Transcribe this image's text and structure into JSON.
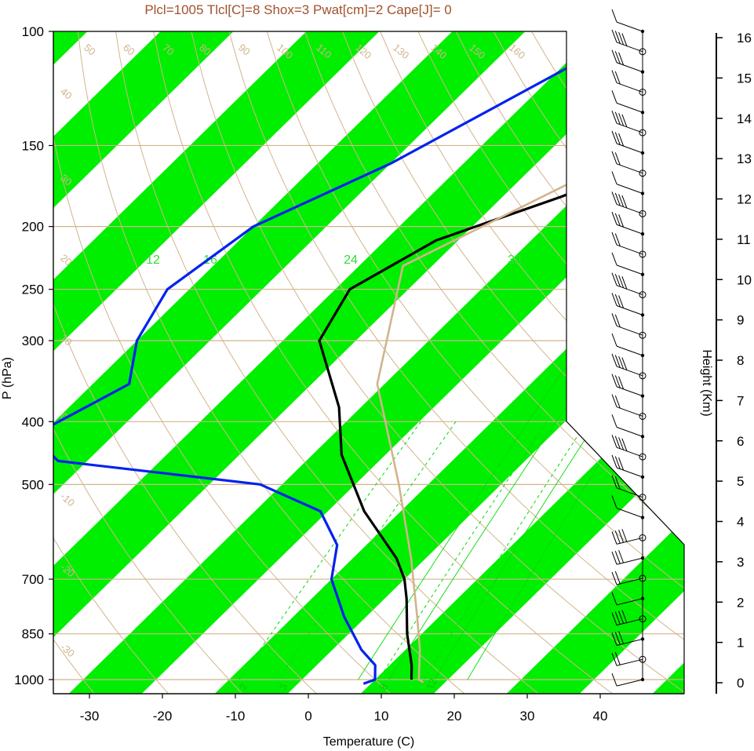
{
  "title": "Plcl=1005 Tlcl[C]=8 Shox=3 Pwat[cm]=2 Cape[J]= 0",
  "colors": {
    "band": "#00ee00",
    "tan": "#d2b48c",
    "temperature": "#000000",
    "dewpoint": "#0022ee",
    "parcel": "#d2b48c",
    "mixing": "#00dd00",
    "title": "#a0522d"
  },
  "chart_data": {
    "type": "line",
    "diagram": "skew-T log-P",
    "xlabel": "Temperature (C)",
    "ylabel": "P (hPa)",
    "height_label": "Height (Km)",
    "pressure_levels": [
      100,
      150,
      200,
      250,
      300,
      400,
      500,
      700,
      850,
      1000
    ],
    "pressure_ticks": [
      "100",
      "150",
      "200",
      "250",
      "300",
      "400",
      "500",
      "700",
      "850",
      "1000"
    ],
    "temp_ticks": [
      "-30",
      "-20",
      "-10",
      "0",
      "10",
      "20",
      "30",
      "40"
    ],
    "temp_values": [
      -30,
      -20,
      -10,
      0,
      10,
      20,
      30,
      40
    ],
    "height_ticks": [
      "0",
      "1",
      "2",
      "3",
      "4",
      "5",
      "6",
      "7",
      "8",
      "9",
      "10",
      "11",
      "12",
      "13",
      "14",
      "15",
      "16"
    ],
    "isotherm_labels": [
      "-30",
      "-20",
      "-10",
      "0",
      "10",
      "20",
      "30",
      "40",
      "-10",
      "0",
      "10",
      "20",
      "30",
      "40",
      "50",
      "60"
    ],
    "theta_labels": [
      "50",
      "60",
      "70",
      "80",
      "90",
      "100",
      "110",
      "120",
      "130",
      "140",
      "150",
      "160",
      "40",
      "30",
      "20",
      "10",
      "0",
      "-10",
      "-20",
      "-30"
    ],
    "mixing_ratio_labels_top": [
      "12",
      "16",
      "24",
      "32"
    ],
    "mixing_ratio_labels_bottom": [
      "2",
      "3",
      "8",
      "12"
    ],
    "series": [
      {
        "name": "Temperature",
        "units": "C / hPa",
        "points": [
          [
            -2.0,
            100
          ],
          [
            -11.0,
            120
          ],
          [
            -21.0,
            150
          ],
          [
            -32.0,
            180
          ],
          [
            -43.0,
            210
          ],
          [
            -48.0,
            250
          ],
          [
            -45.0,
            300
          ],
          [
            -33.0,
            380
          ],
          [
            -26.0,
            450
          ],
          [
            -15.0,
            550
          ],
          [
            -4.0,
            650
          ],
          [
            0.0,
            700
          ],
          [
            3.0,
            750
          ],
          [
            8.0,
            850
          ],
          [
            13.0,
            950
          ],
          [
            15.0,
            1000
          ]
        ]
      },
      {
        "name": "Dewpoint",
        "units": "C / hPa",
        "points": [
          [
            -45.0,
            100
          ],
          [
            -60.0,
            160
          ],
          [
            -70.0,
            200
          ],
          [
            -73.0,
            250
          ],
          [
            -70.0,
            300
          ],
          [
            -65.0,
            350
          ],
          [
            -71.0,
            420
          ],
          [
            -64.0,
            460
          ],
          [
            -33.0,
            500
          ],
          [
            -21.0,
            550
          ],
          [
            -14.0,
            620
          ],
          [
            -10.0,
            700
          ],
          [
            -3.0,
            800
          ],
          [
            4.0,
            900
          ],
          [
            8.0,
            950
          ],
          [
            10.0,
            1000
          ],
          [
            9.0,
            1015
          ]
        ]
      },
      {
        "name": "Parcel",
        "units": "C / hPa",
        "points": [
          [
            -12.0,
            100
          ],
          [
            -44.0,
            230
          ],
          [
            -31.0,
            350
          ],
          [
            -14.0,
            500
          ],
          [
            -2.0,
            650
          ],
          [
            7.0,
            800
          ],
          [
            12.0,
            900
          ],
          [
            16.0,
            1000
          ],
          [
            17.0,
            1010
          ]
        ]
      }
    ],
    "wind_barbs_levels": 33
  }
}
